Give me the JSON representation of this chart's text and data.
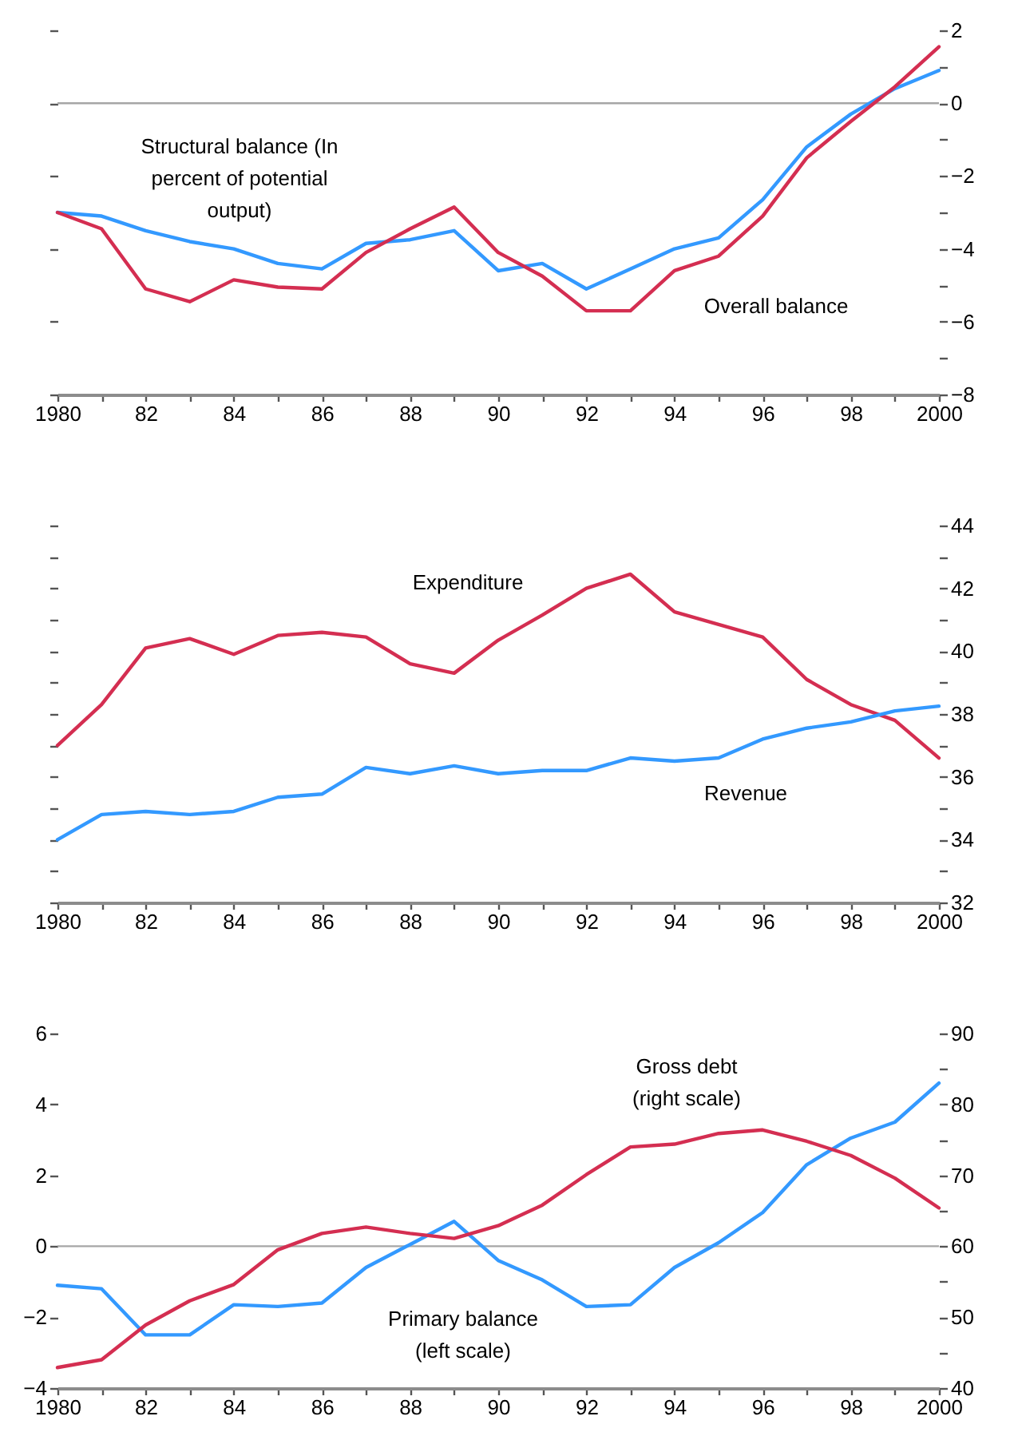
{
  "chart_data": [
    {
      "type": "line",
      "x": [
        1980,
        1981,
        1982,
        1983,
        1984,
        1985,
        1986,
        1987,
        1988,
        1989,
        1990,
        1991,
        1992,
        1993,
        1994,
        1995,
        1996,
        1997,
        1998,
        1999,
        2000
      ],
      "series": [
        {
          "name": "Structural balance (In percent of potential output)",
          "color": "#3399ff",
          "values": [
            -3.0,
            -3.1,
            -3.5,
            -3.8,
            -4.0,
            -4.4,
            -4.55,
            -3.85,
            -3.75,
            -3.5,
            -4.6,
            -4.4,
            -5.1,
            -4.55,
            -4.0,
            -3.7,
            -2.65,
            -1.2,
            -0.3,
            0.4,
            0.9
          ]
        },
        {
          "name": "Overall balance",
          "color": "#d42e51",
          "values": [
            -3.0,
            -3.45,
            -5.1,
            -5.45,
            -4.85,
            -5.05,
            -5.1,
            -4.1,
            -3.45,
            -2.85,
            -4.1,
            -4.75,
            -5.7,
            -5.7,
            -4.6,
            -4.2,
            -3.1,
            -1.5,
            -0.5,
            0.45,
            1.55
          ]
        }
      ],
      "xlim": [
        1980,
        2000
      ],
      "xticks": [
        {
          "value": 1980,
          "label": "1980"
        },
        {
          "value": 1981,
          "label": null
        },
        {
          "value": 1982,
          "label": "82"
        },
        {
          "value": 1983,
          "label": null
        },
        {
          "value": 1984,
          "label": "84"
        },
        {
          "value": 1985,
          "label": null
        },
        {
          "value": 1986,
          "label": "86"
        },
        {
          "value": 1987,
          "label": null
        },
        {
          "value": 1988,
          "label": "88"
        },
        {
          "value": 1989,
          "label": null
        },
        {
          "value": 1990,
          "label": "90"
        },
        {
          "value": 1991,
          "label": null
        },
        {
          "value": 1992,
          "label": "92"
        },
        {
          "value": 1993,
          "label": null
        },
        {
          "value": 1994,
          "label": "94"
        },
        {
          "value": 1995,
          "label": null
        },
        {
          "value": 1996,
          "label": "96"
        },
        {
          "value": 1997,
          "label": null
        },
        {
          "value": 1998,
          "label": "98"
        },
        {
          "value": 1999,
          "label": null
        },
        {
          "value": 2000,
          "label": "2000"
        }
      ],
      "ylim": [
        -8,
        2
      ],
      "yticks": [
        -8,
        {
          "value": -7,
          "label": null
        },
        -6,
        {
          "value": -5,
          "label": null
        },
        -4,
        {
          "value": -3,
          "label": null
        },
        -2,
        {
          "value": -1,
          "label": null
        },
        0,
        {
          "value": 1,
          "label": null
        },
        2
      ],
      "ref_lines": [
        {
          "axis": "y",
          "value": 0,
          "color": "#a6a6a6"
        }
      ],
      "grid": false
    },
    {
      "type": "line",
      "x": [
        1980,
        1981,
        1982,
        1983,
        1984,
        1985,
        1986,
        1987,
        1988,
        1989,
        1990,
        1991,
        1992,
        1993,
        1994,
        1995,
        1996,
        1997,
        1998,
        1999,
        2000
      ],
      "series": [
        {
          "name": "Expenditure",
          "color": "#d42e51",
          "values": [
            37.0,
            38.3,
            40.1,
            40.4,
            39.9,
            40.5,
            40.6,
            40.45,
            39.6,
            39.3,
            40.35,
            41.15,
            42.0,
            42.45,
            41.25,
            40.85,
            40.45,
            39.1,
            38.3,
            37.8,
            36.6
          ]
        },
        {
          "name": "Revenue",
          "color": "#3399ff",
          "values": [
            34.0,
            34.8,
            34.9,
            34.8,
            34.9,
            35.35,
            35.45,
            36.3,
            36.1,
            36.35,
            36.1,
            36.2,
            36.2,
            36.6,
            36.5,
            36.6,
            37.2,
            37.55,
            37.75,
            38.1,
            38.25
          ]
        }
      ],
      "xlim": [
        1980,
        2000
      ],
      "xticks": [
        {
          "value": 1980,
          "label": "1980"
        },
        {
          "value": 1981,
          "label": null
        },
        {
          "value": 1982,
          "label": "82"
        },
        {
          "value": 1983,
          "label": null
        },
        {
          "value": 1984,
          "label": "84"
        },
        {
          "value": 1985,
          "label": null
        },
        {
          "value": 1986,
          "label": "86"
        },
        {
          "value": 1987,
          "label": null
        },
        {
          "value": 1988,
          "label": "88"
        },
        {
          "value": 1989,
          "label": null
        },
        {
          "value": 1990,
          "label": "90"
        },
        {
          "value": 1991,
          "label": null
        },
        {
          "value": 1992,
          "label": "92"
        },
        {
          "value": 1993,
          "label": null
        },
        {
          "value": 1994,
          "label": "94"
        },
        {
          "value": 1995,
          "label": null
        },
        {
          "value": 1996,
          "label": "96"
        },
        {
          "value": 1997,
          "label": null
        },
        {
          "value": 1998,
          "label": "98"
        },
        {
          "value": 1999,
          "label": null
        },
        {
          "value": 2000,
          "label": "2000"
        }
      ],
      "ylim": [
        32,
        44
      ],
      "yticks": [
        32,
        {
          "value": 33,
          "label": null
        },
        34,
        {
          "value": 35,
          "label": null
        },
        36,
        {
          "value": 37,
          "label": null
        },
        38,
        {
          "value": 39,
          "label": null
        },
        40,
        {
          "value": 41,
          "label": null
        },
        42,
        {
          "value": 43,
          "label": null
        },
        44
      ],
      "grid": false
    },
    {
      "type": "line",
      "x": [
        1980,
        1981,
        1982,
        1983,
        1984,
        1985,
        1986,
        1987,
        1988,
        1989,
        1990,
        1991,
        1992,
        1993,
        1994,
        1995,
        1996,
        1997,
        1998,
        1999,
        2000
      ],
      "series": [
        {
          "name": "Primary balance (left scale)",
          "color": "#3399ff",
          "values": [
            -1.1,
            -1.2,
            -2.5,
            -2.5,
            -1.65,
            -1.7,
            -1.6,
            -0.6,
            0.05,
            0.7,
            -0.4,
            -0.95,
            -1.7,
            -1.65,
            -0.6,
            0.1,
            0.95,
            2.3,
            3.05,
            3.5,
            4.6
          ]
        },
        {
          "name": "Gross debt (right scale)",
          "color": "#d42e51",
          "axis": "y2",
          "values": [
            42.9,
            44.0,
            48.9,
            52.3,
            54.6,
            59.5,
            61.8,
            62.7,
            61.8,
            61.1,
            62.9,
            65.8,
            70.1,
            74.0,
            74.4,
            75.9,
            76.4,
            74.8,
            72.8,
            69.6,
            65.4
          ]
        }
      ],
      "xlim": [
        1980,
        2000
      ],
      "xticks": [
        {
          "value": 1980,
          "label": "1980"
        },
        {
          "value": 1981,
          "label": null
        },
        {
          "value": 1982,
          "label": "82"
        },
        {
          "value": 1983,
          "label": null
        },
        {
          "value": 1984,
          "label": "84"
        },
        {
          "value": 1985,
          "label": null
        },
        {
          "value": 1986,
          "label": "86"
        },
        {
          "value": 1987,
          "label": null
        },
        {
          "value": 1988,
          "label": "88"
        },
        {
          "value": 1989,
          "label": null
        },
        {
          "value": 1990,
          "label": "90"
        },
        {
          "value": 1991,
          "label": null
        },
        {
          "value": 1992,
          "label": "92"
        },
        {
          "value": 1993,
          "label": null
        },
        {
          "value": 1994,
          "label": "94"
        },
        {
          "value": 1995,
          "label": null
        },
        {
          "value": 1996,
          "label": "96"
        },
        {
          "value": 1997,
          "label": null
        },
        {
          "value": 1998,
          "label": "98"
        },
        {
          "value": 1999,
          "label": null
        },
        {
          "value": 2000,
          "label": "2000"
        }
      ],
      "ylim": [
        -4,
        6
      ],
      "yticks": [
        -4,
        {
          "value": -3,
          "label": null
        },
        -2,
        {
          "value": -1,
          "label": null
        },
        0,
        {
          "value": 1,
          "label": null
        },
        2,
        {
          "value": 3,
          "label": null
        },
        4,
        {
          "value": 5,
          "label": null
        },
        6
      ],
      "y2lim": [
        40,
        90
      ],
      "y2ticks": [
        40,
        {
          "value": 45,
          "label": null
        },
        50,
        {
          "value": 55,
          "label": null
        },
        60,
        {
          "value": 65,
          "label": null
        },
        70,
        {
          "value": 75,
          "label": null
        },
        80,
        {
          "value": 85,
          "label": null
        },
        90
      ],
      "ref_lines": [
        {
          "axis": "y",
          "value": 0,
          "color": "#a6a6a6"
        }
      ],
      "grid": false
    }
  ]
}
